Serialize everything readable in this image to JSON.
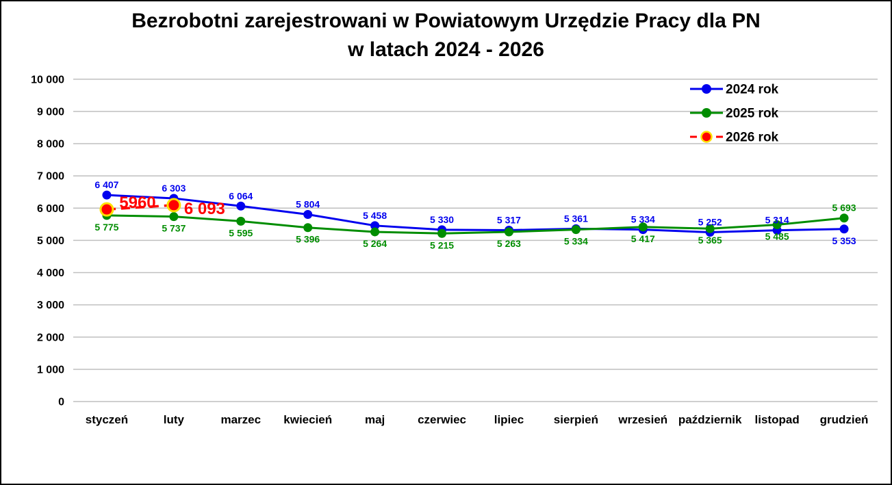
{
  "chart_data": {
    "type": "line",
    "title": "Bezrobotni zarejestrowani w Powiatowym Urzędzie Pracy dla PN\nw latach 2024 - 2026",
    "categories": [
      "styczeń",
      "luty",
      "marzec",
      "kwiecień",
      "maj",
      "czerwiec",
      "lipiec",
      "sierpień",
      "wrzesień",
      "październik",
      "listopad",
      "grudzień"
    ],
    "ylim": [
      0,
      10000
    ],
    "ytick_step": 1000,
    "ytick_labels": [
      "0",
      "1 000",
      "2 000",
      "3 000",
      "4 000",
      "5 000",
      "6 000",
      "7 000",
      "8 000",
      "9 000",
      "10 000"
    ],
    "grid": "horizontal-only",
    "gridline_color": "#BFBFBF",
    "legend_position": "top-right",
    "series": [
      {
        "name": "2024 rok",
        "color": "#0000EE",
        "line_style": "solid",
        "marker": "circle",
        "values": [
          6407,
          6303,
          6064,
          5804,
          5458,
          5330,
          5317,
          5361,
          5334,
          5252,
          5314,
          5353
        ],
        "labels": [
          "6 407",
          "6 303",
          "6 064",
          "5 804",
          "5 458",
          "5 330",
          "5 317",
          "5 361",
          "5 334",
          "5 252",
          "5 314",
          "5 353"
        ],
        "label_positions": [
          "above",
          "above",
          "above",
          "above",
          "above",
          "above",
          "above",
          "above",
          "above",
          "above",
          "above",
          "below"
        ]
      },
      {
        "name": "2025 rok",
        "color": "#008D00",
        "line_style": "solid",
        "marker": "circle",
        "values": [
          5775,
          5737,
          5595,
          5396,
          5264,
          5215,
          5263,
          5334,
          5417,
          5365,
          5485,
          5693
        ],
        "labels": [
          "5 775",
          "5 737",
          "5 595",
          "5 396",
          "5 264",
          "5 215",
          "5 263",
          "5 334",
          "5 417",
          "5 365",
          "5 485",
          "5 693"
        ],
        "label_positions": [
          "below",
          "below",
          "below",
          "below",
          "below",
          "below",
          "below",
          "below",
          "below",
          "below",
          "below",
          "above"
        ]
      },
      {
        "name": "2026 rok",
        "color": "#FF0000",
        "marker_ring": "#FFE000",
        "line_style": "dashed",
        "marker": "circle-large",
        "label_size": "large",
        "values": [
          5960,
          6093,
          null,
          null,
          null,
          null,
          null,
          null,
          null,
          null,
          null,
          null
        ],
        "labels": [
          "5960",
          "6 093",
          "",
          "",
          "",
          "",
          "",
          "",
          "",
          "",
          "",
          ""
        ],
        "label_positions": [
          "right-above",
          "right-below",
          "",
          "",
          "",
          "",
          "",
          "",
          "",
          "",
          "",
          ""
        ]
      }
    ]
  }
}
